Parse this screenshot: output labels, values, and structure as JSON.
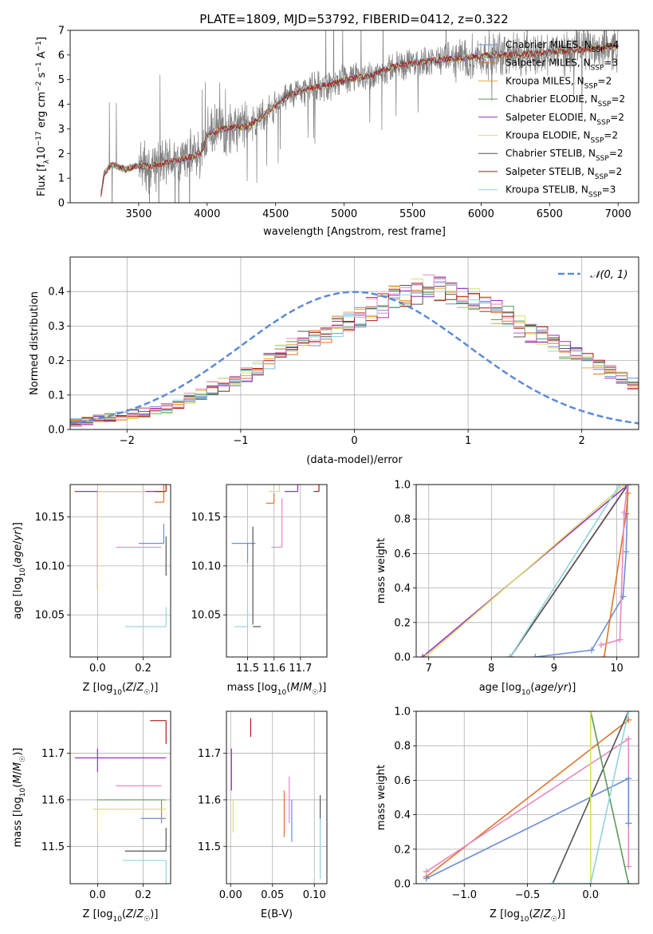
{
  "figure": {
    "title": "PLATE=1809, MJD=53792, FIBERID=0412, z=0.322"
  },
  "colors": {
    "Chabrier MILES": "#6b8fd6",
    "Salpeter MILES": "#e0742a",
    "Kroupa MILES": "#e6a23c",
    "Chabrier ELODIE": "#5a9a5a",
    "Salpeter ELODIE": "#9b2fbf",
    "Kroupa ELODIE": "#d7e06a",
    "Chabrier STELIB": "#555555",
    "Salpeter STELIB": "#b01818",
    "Kroupa STELIB": "#8fd3df",
    "pink": "#e787c2",
    "data": "#7f7f7f",
    "normal": "#5b8bd6"
  },
  "chart_data": [
    {
      "id": "spectrum",
      "type": "line",
      "title": "PLATE=1809, MJD=53792, FIBERID=0412, z=0.322",
      "xlabel": "wavelength [Angstrom, rest frame]",
      "ylabel": "Flux [f_λ 10^-17 erg cm^-2 s^-1 A^-1]",
      "xlim": [
        3000,
        7150
      ],
      "ylim": [
        0,
        7
      ],
      "xticks": [
        3500,
        4000,
        4500,
        5000,
        5500,
        6000,
        6500,
        7000
      ],
      "yticks": [
        0,
        1,
        2,
        3,
        4,
        5,
        6,
        7
      ],
      "legend_position": "top-right",
      "legend": [
        {
          "main": "Chabrier MILES, N",
          "sub": "SSP",
          "tail": "=4"
        },
        {
          "main": "Salpeter MILES, N",
          "sub": "SSP",
          "tail": "=3"
        },
        {
          "main": "Kroupa MILES, N",
          "sub": "SSP",
          "tail": "=2"
        },
        {
          "main": "Chabrier ELODIE, N",
          "sub": "SSP",
          "tail": "=2"
        },
        {
          "main": "Salpeter ELODIE, N",
          "sub": "SSP",
          "tail": "=2"
        },
        {
          "main": "Kroupa ELODIE, N",
          "sub": "SSP",
          "tail": "=2"
        },
        {
          "main": "Chabrier STELIB, N",
          "sub": "SSP",
          "tail": "=2"
        },
        {
          "main": "Salpeter STELIB, N",
          "sub": "SSP",
          "tail": "=2"
        },
        {
          "main": "Kroupa STELIB, N",
          "sub": "SSP",
          "tail": "=3"
        }
      ],
      "continuum": {
        "x": [
          3220,
          3250,
          3300,
          3400,
          3500,
          3600,
          3700,
          3800,
          3900,
          3960,
          4000,
          4100,
          4200,
          4300,
          4400,
          4500,
          4600,
          4700,
          4800,
          4900,
          5000,
          5100,
          5200,
          5300,
          5400,
          5500,
          5600,
          5700,
          5800,
          5900,
          6000,
          6100,
          6200,
          6300,
          6400,
          6500,
          6600,
          6700,
          6800,
          6900,
          7000
        ],
        "y": [
          0.15,
          1.2,
          1.55,
          1.35,
          1.5,
          1.5,
          1.65,
          1.75,
          1.9,
          2.0,
          2.75,
          3.0,
          3.05,
          3.1,
          3.5,
          3.95,
          4.35,
          4.6,
          4.7,
          4.8,
          4.95,
          5.1,
          5.15,
          5.4,
          5.6,
          5.65,
          5.75,
          5.8,
          5.85,
          5.9,
          5.95,
          6.0,
          6.0,
          6.05,
          6.05,
          6.1,
          6.15,
          6.2,
          6.25,
          6.3,
          6.35
        ]
      }
    },
    {
      "id": "residuals",
      "type": "bar",
      "xlabel": "(data-model)/error",
      "ylabel": "Normed distribution",
      "xlim": [
        -2.5,
        2.5
      ],
      "ylim": [
        0,
        0.5
      ],
      "xticks": [
        -2,
        -1,
        0,
        1,
        2
      ],
      "yticks": [
        0.0,
        0.1,
        0.2,
        0.3,
        0.4
      ],
      "legend_position": "top-right",
      "legend": [
        {
          "label": "𝒩(0, 1)"
        }
      ],
      "bin_edges_start": -2.5,
      "bin_width": 0.1,
      "values": [
        0.02,
        0.025,
        0.03,
        0.035,
        0.04,
        0.045,
        0.05,
        0.055,
        0.06,
        0.075,
        0.09,
        0.1,
        0.12,
        0.13,
        0.145,
        0.16,
        0.18,
        0.2,
        0.22,
        0.24,
        0.26,
        0.27,
        0.28,
        0.3,
        0.31,
        0.33,
        0.35,
        0.36,
        0.38,
        0.39,
        0.4,
        0.42,
        0.41,
        0.4,
        0.39,
        0.38,
        0.36,
        0.34,
        0.33,
        0.3,
        0.28,
        0.27,
        0.25,
        0.23,
        0.22,
        0.2,
        0.18,
        0.17,
        0.15,
        0.13,
        0.12,
        0.1,
        0.08,
        0.07,
        0.06,
        0.05,
        0.045,
        0.04,
        0.03,
        0.025
      ]
    },
    {
      "id": "age-vs-Z",
      "type": "scatter",
      "xlabel": "Z [log10(Z/Z☉)]",
      "ylabel": "age  [log10(age/yr)]",
      "xlim": [
        -0.12,
        0.32
      ],
      "ylim": [
        10.007,
        10.183
      ],
      "xticks": [
        0.0,
        0.2
      ],
      "yticks": [
        10.05,
        10.1,
        10.15
      ],
      "points": [
        {
          "series": "Salpeter ELODIE",
          "x": 0.0,
          "y": 10.176,
          "xerr": [
            0.1,
            0.3
          ],
          "yerr": [
            0.1,
            0.0
          ]
        },
        {
          "series": "Kroupa ELODIE",
          "x": 0.0,
          "y": 10.176,
          "xerr": [
            0.0,
            0.21
          ],
          "yerr": [
            0.1,
            0.0
          ]
        },
        {
          "series": "Salpeter STELIB",
          "x": 0.3,
          "y": 10.176,
          "xerr": [
            0.05,
            0.0
          ],
          "yerr": [
            0.0,
            0.01
          ]
        },
        {
          "series": "Salpeter MILES",
          "x": 0.29,
          "y": 10.165,
          "xerr": [
            0.04,
            0.0
          ],
          "yerr": [
            0.0,
            0.02
          ]
        },
        {
          "series": "Chabrier MILES",
          "x": 0.29,
          "y": 10.123,
          "xerr": [
            0.11,
            0.0
          ],
          "yerr": [
            0.0,
            0.02
          ]
        },
        {
          "series": "pink",
          "x": 0.28,
          "y": 10.119,
          "xerr": [
            0.2,
            0.0
          ],
          "yerr": [
            0.0,
            0.0
          ]
        },
        {
          "series": "Kroupa STELIB",
          "x": 0.3,
          "y": 10.038,
          "xerr": [
            0.18,
            0.0
          ],
          "yerr": [
            0.0,
            0.02
          ]
        },
        {
          "series": "Chabrier STELIB",
          "x": 0.3,
          "y": 10.11,
          "xerr": [
            0.0,
            0.0
          ],
          "yerr": [
            0.02,
            0.02
          ]
        }
      ]
    },
    {
      "id": "age-vs-mass",
      "type": "scatter",
      "xlabel": "mass [log10(M/M☉)]",
      "ylabel": "",
      "xlim": [
        11.42,
        11.8
      ],
      "ylim": [
        10.007,
        10.183
      ],
      "xticks": [
        11.5,
        11.6,
        11.7
      ],
      "yticks": [
        10.05,
        10.1,
        10.15
      ],
      "points": [
        {
          "series": "Salpeter STELIB",
          "x": 11.77,
          "y": 10.176,
          "xerr": [
            0.02,
            0.0
          ],
          "yerr": [
            0.0,
            0.03
          ]
        },
        {
          "series": "Salpeter ELODIE",
          "x": 11.69,
          "y": 10.176,
          "xerr": [
            0.05,
            0.0
          ],
          "yerr": [
            0.0,
            0.05
          ]
        },
        {
          "series": "Kroupa ELODIE",
          "x": 11.62,
          "y": 10.176,
          "xerr": [
            0.04,
            0.0
          ],
          "yerr": [
            0.0,
            0.06
          ]
        },
        {
          "series": "Salpeter MILES",
          "x": 11.6,
          "y": 10.164,
          "xerr": [
            0.03,
            0.0
          ],
          "yerr": [
            0.0,
            0.01
          ]
        },
        {
          "series": "Chabrier MILES",
          "x": 11.5,
          "y": 10.123,
          "xerr": [
            0.06,
            0.03
          ],
          "yerr": [
            0.02,
            0.0
          ]
        },
        {
          "series": "pink",
          "x": 11.63,
          "y": 10.119,
          "xerr": [
            0.04,
            0.0
          ],
          "yerr": [
            0.0,
            0.05
          ]
        },
        {
          "series": "Chabrier STELIB",
          "x": 11.52,
          "y": 10.1,
          "xerr": [
            0.0,
            0.0
          ],
          "yerr": [
            0.06,
            0.04
          ]
        },
        {
          "series": "Kroupa STELIB",
          "x": 11.5,
          "y": 10.038,
          "xerr": [
            0.05,
            0.0
          ],
          "yerr": [
            0.0,
            0.02
          ]
        },
        {
          "series": "Chabrier STELIB",
          "x": 11.55,
          "y": 10.038,
          "xerr": [
            0.03,
            0.0
          ],
          "yerr": [
            0.0,
            0.0
          ]
        }
      ]
    },
    {
      "id": "weight-vs-age",
      "type": "line",
      "xlabel": "age  [log10(age/yr)]",
      "ylabel": "mass weight",
      "xlim": [
        6.8,
        10.35
      ],
      "ylim": [
        0,
        1
      ],
      "xticks": [
        7,
        8,
        9,
        10
      ],
      "yticks": [
        0.0,
        0.2,
        0.4,
        0.6,
        0.8,
        1.0
      ],
      "series": [
        {
          "name": "Salpeter ELODIE",
          "x": [
            6.9,
            10.18
          ],
          "y": [
            0.0,
            1.0
          ]
        },
        {
          "name": "Kroupa ELODIE",
          "x": [
            6.95,
            10.12
          ],
          "y": [
            0.0,
            1.0
          ]
        },
        {
          "name": "Salpeter STELIB",
          "x": [
            8.3,
            10.18
          ],
          "y": [
            0.0,
            1.0
          ]
        },
        {
          "name": "Chabrier STELIB",
          "x": [
            8.3,
            10.18
          ],
          "y": [
            0.0,
            1.0
          ]
        },
        {
          "name": "Kroupa STELIB",
          "x": [
            8.3,
            10.05
          ],
          "y": [
            0.0,
            1.0
          ]
        },
        {
          "name": "Chabrier MILES",
          "x": [
            8.7,
            9.6,
            10.1,
            10.15,
            10.18
          ],
          "y": [
            0.0,
            0.04,
            0.35,
            0.61,
            1.0
          ]
        },
        {
          "name": "Salpeter MILES",
          "x": [
            9.8,
            10.15,
            10.18
          ],
          "y": [
            0.0,
            0.83,
            0.95
          ]
        },
        {
          "name": "pink",
          "x": [
            9.75,
            10.05,
            10.12,
            10.17
          ],
          "y": [
            0.07,
            0.1,
            0.84,
            1.0
          ]
        }
      ]
    },
    {
      "id": "mass-vs-Z",
      "type": "scatter",
      "xlabel": "Z [log10(Z/Z☉)]",
      "ylabel": "mass [log10(M/M☉)]",
      "xlim": [
        -0.12,
        0.32
      ],
      "ylim": [
        11.42,
        11.79
      ],
      "xticks": [
        0.0,
        0.2
      ],
      "yticks": [
        11.5,
        11.6,
        11.7
      ],
      "points": [
        {
          "series": "Salpeter STELIB",
          "x": 0.3,
          "y": 11.77,
          "xerr": [
            0.07,
            0.0
          ],
          "yerr": [
            0.05,
            0.0
          ]
        },
        {
          "series": "Salpeter ELODIE",
          "x": 0.0,
          "y": 11.69,
          "xerr": [
            0.1,
            0.3
          ],
          "yerr": [
            0.03,
            0.02
          ]
        },
        {
          "series": "pink",
          "x": 0.28,
          "y": 11.63,
          "xerr": [
            0.2,
            0.0
          ],
          "yerr": [
            0.0,
            0.0
          ]
        },
        {
          "series": "Chabrier ELODIE",
          "x": 0.0,
          "y": 11.6,
          "xerr": [
            0.0,
            0.3
          ],
          "yerr": [
            0.0,
            0.0
          ]
        },
        {
          "series": "Salpeter MILES",
          "x": 0.28,
          "y": 11.6,
          "xerr": [
            0.0,
            0.0
          ],
          "yerr": [
            0.05,
            0.0
          ]
        },
        {
          "series": "Kroupa ELODIE",
          "x": 0.0,
          "y": 11.58,
          "xerr": [
            0.02,
            0.3
          ],
          "yerr": [
            0.05,
            0.0
          ]
        },
        {
          "series": "Chabrier MILES",
          "x": 0.3,
          "y": 11.56,
          "xerr": [
            0.11,
            0.0
          ],
          "yerr": [
            0.0,
            0.0
          ]
        },
        {
          "series": "Chabrier STELIB",
          "x": 0.3,
          "y": 11.49,
          "xerr": [
            0.18,
            0.0
          ],
          "yerr": [
            0.0,
            0.05
          ]
        },
        {
          "series": "Kroupa STELIB",
          "x": 0.3,
          "y": 11.47,
          "xerr": [
            0.19,
            0.0
          ],
          "yerr": [
            0.05,
            0.0
          ]
        }
      ]
    },
    {
      "id": "mass-vs-EBV",
      "type": "scatter",
      "xlabel": "E(B-V)",
      "ylabel": "",
      "xlim": [
        -0.005,
        0.115
      ],
      "ylim": [
        11.42,
        11.79
      ],
      "xticks": [
        0.0,
        0.05,
        0.1
      ],
      "yticks": [
        11.5,
        11.6,
        11.7
      ],
      "points": [
        {
          "series": "Salpeter STELIB",
          "x": 0.024,
          "y": 11.755,
          "yerr": [
            0.02,
            0.02
          ]
        },
        {
          "series": "Salpeter ELODIE",
          "x": 0.001,
          "y": 11.67,
          "yerr": [
            0.05,
            0.04
          ]
        },
        {
          "series": "Kroupa ELODIE",
          "x": 0.003,
          "y": 11.56,
          "yerr": [
            0.03,
            0.04
          ]
        },
        {
          "series": "Salpeter MILES",
          "x": 0.064,
          "y": 11.57,
          "yerr": [
            0.05,
            0.05
          ]
        },
        {
          "series": "pink",
          "x": 0.07,
          "y": 11.6,
          "yerr": [
            0.05,
            0.05
          ]
        },
        {
          "series": "Chabrier MILES",
          "x": 0.073,
          "y": 11.56,
          "yerr": [
            0.05,
            0.04
          ]
        },
        {
          "series": "Chabrier STELIB",
          "x": 0.107,
          "y": 11.58,
          "yerr": [
            0.03,
            0.03
          ]
        },
        {
          "series": "Kroupa STELIB",
          "x": 0.107,
          "y": 11.49,
          "yerr": [
            0.06,
            0.07
          ]
        }
      ]
    },
    {
      "id": "weight-vs-Z",
      "type": "line",
      "xlabel": "Z [log10(Z/Z☉)]",
      "ylabel": "mass weight",
      "xlim": [
        -1.38,
        0.38
      ],
      "ylim": [
        0,
        1
      ],
      "xticks": [
        -1.0,
        -0.5,
        0.0
      ],
      "yticks": [
        0.0,
        0.2,
        0.4,
        0.6,
        0.8,
        1.0
      ],
      "series": [
        {
          "name": "Salpeter MILES",
          "x": [
            -1.3,
            0.3
          ],
          "y": [
            0.04,
            0.95
          ]
        },
        {
          "name": "pink",
          "x": [
            -1.3,
            0.3,
            0.3,
            0.3
          ],
          "y": [
            0.07,
            0.84,
            0.35,
            0.1
          ]
        },
        {
          "name": "Chabrier MILES",
          "x": [
            -1.3,
            0.3,
            0.3
          ],
          "y": [
            0.03,
            0.61,
            0.35
          ]
        },
        {
          "name": "Chabrier STELIB",
          "x": [
            -0.3,
            0.3
          ],
          "y": [
            0.0,
            1.0
          ]
        },
        {
          "name": "Chabrier ELODIE",
          "x": [
            0.0,
            0.3
          ],
          "y": [
            1.0,
            0.0
          ]
        },
        {
          "name": "Kroupa ELODIE",
          "x": [
            0.0,
            0.0
          ],
          "y": [
            0.0,
            1.0
          ]
        },
        {
          "name": "Kroupa STELIB",
          "x": [
            -0.3,
            0.0,
            0.3
          ],
          "y": [
            0.0,
            0.0,
            1.0
          ]
        }
      ]
    }
  ]
}
